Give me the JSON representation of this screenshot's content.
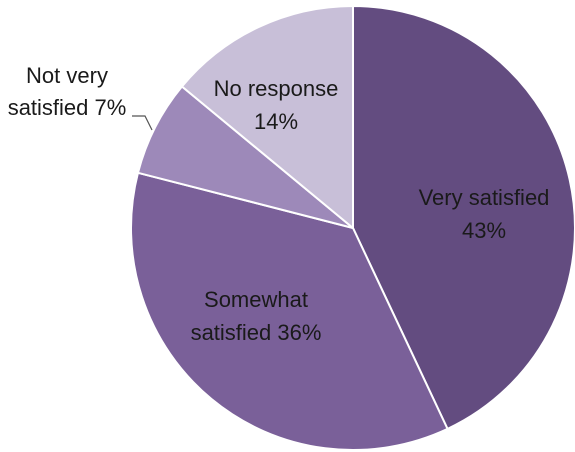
{
  "chart_data": {
    "type": "pie",
    "title": "",
    "slices": [
      {
        "label_lines": [
          "Very satisfied",
          "43%"
        ],
        "category": "Very satisfied",
        "value": 43,
        "color": "#634c80"
      },
      {
        "label_lines": [
          "Somewhat",
          "satisfied 36%"
        ],
        "category": "Somewhat satisfied",
        "value": 36,
        "color": "#7a6099"
      },
      {
        "label_lines": [
          "Not very",
          "satisfied 7%"
        ],
        "category": "Not very satisfied",
        "value": 7,
        "color": "#9d89b9"
      },
      {
        "label_lines": [
          "No response",
          "14%"
        ],
        "category": "No response",
        "value": 14,
        "color": "#c8bfd8"
      }
    ],
    "start_angle": "12 o'clock",
    "direction": "clockwise",
    "legend": "none"
  }
}
